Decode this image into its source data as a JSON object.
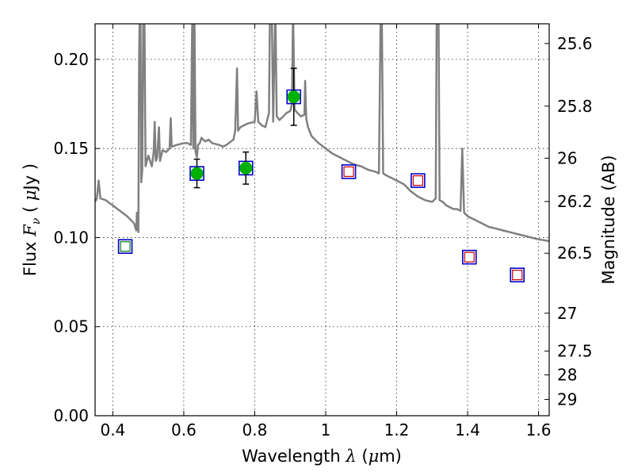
{
  "chart_data": {
    "type": "scatter",
    "xlabel": "Wavelength  λ (μm)",
    "ylabel": "Flux  F_ν  ( μJy )",
    "y2label": "Magnitude (AB)",
    "xlim": [
      0.35,
      1.63
    ],
    "ylim": [
      0.0,
      0.22
    ],
    "x_ticks": [
      {
        "value": 0.4,
        "label": "0.4"
      },
      {
        "value": 0.6,
        "label": "0.6"
      },
      {
        "value": 0.8,
        "label": "0.8"
      },
      {
        "value": 1.0,
        "label": "1"
      },
      {
        "value": 1.2,
        "label": "1.2"
      },
      {
        "value": 1.4,
        "label": "1.4"
      },
      {
        "value": 1.6,
        "label": "1.6"
      }
    ],
    "y_ticks": [
      {
        "value": 0.0,
        "label": "0.00"
      },
      {
        "value": 0.05,
        "label": "0.05"
      },
      {
        "value": 0.1,
        "label": "0.10"
      },
      {
        "value": 0.15,
        "label": "0.15"
      },
      {
        "value": 0.2,
        "label": "0.20"
      }
    ],
    "mag_ticks": [
      {
        "mag": 25.6,
        "label": "25.6"
      },
      {
        "mag": 25.8,
        "label": "25.8"
      },
      {
        "mag": 26.0,
        "label": "26"
      },
      {
        "mag": 26.2,
        "label": "26.2"
      },
      {
        "mag": 26.5,
        "label": "26.5"
      },
      {
        "mag": 27.0,
        "label": "27"
      },
      {
        "mag": 27.5,
        "label": "27.5"
      },
      {
        "mag": 28.0,
        "label": "28"
      },
      {
        "mag": 29.0,
        "label": "29"
      }
    ],
    "grid": true,
    "colors": {
      "model": "#808080",
      "observed": "#00b000",
      "model_photometry_box": "#0000cc",
      "predicted_fill": "#008000",
      "predicted_red": "#cc0000",
      "error_bar": "#000000"
    },
    "series": [
      {
        "kind": "line",
        "points": [
          [
            0.35,
            0.12
          ],
          [
            0.355,
            0.122
          ],
          [
            0.36,
            0.132
          ],
          [
            0.365,
            0.122
          ],
          [
            0.38,
            0.121
          ],
          [
            0.4,
            0.118
          ],
          [
            0.42,
            0.115
          ],
          [
            0.44,
            0.112
          ],
          [
            0.45,
            0.11
          ],
          [
            0.46,
            0.108
          ],
          [
            0.466,
            0.104
          ],
          [
            0.468,
            0.114
          ],
          [
            0.472,
            0.103
          ],
          [
            0.474,
            0.2
          ],
          [
            0.476,
            0.23
          ],
          [
            0.478,
            0.23
          ],
          [
            0.48,
            0.131
          ],
          [
            0.483,
            0.138
          ],
          [
            0.486,
            0.23
          ],
          [
            0.489,
            0.23
          ],
          [
            0.492,
            0.14
          ],
          [
            0.5,
            0.146
          ],
          [
            0.51,
            0.14
          ],
          [
            0.515,
            0.148
          ],
          [
            0.518,
            0.165
          ],
          [
            0.521,
            0.143
          ],
          [
            0.525,
            0.145
          ],
          [
            0.53,
            0.162
          ],
          [
            0.533,
            0.143
          ],
          [
            0.54,
            0.149
          ],
          [
            0.55,
            0.148
          ],
          [
            0.56,
            0.15
          ],
          [
            0.563,
            0.167
          ],
          [
            0.566,
            0.151
          ],
          [
            0.58,
            0.152
          ],
          [
            0.6,
            0.153
          ],
          [
            0.61,
            0.153
          ],
          [
            0.62,
            0.152
          ],
          [
            0.624,
            0.228
          ],
          [
            0.627,
            0.15
          ],
          [
            0.63,
            0.23
          ],
          [
            0.633,
            0.148
          ],
          [
            0.637,
            0.145
          ],
          [
            0.64,
            0.152
          ],
          [
            0.645,
            0.153
          ],
          [
            0.65,
            0.156
          ],
          [
            0.66,
            0.154
          ],
          [
            0.67,
            0.155
          ],
          [
            0.68,
            0.153
          ],
          [
            0.7,
            0.152
          ],
          [
            0.71,
            0.151
          ],
          [
            0.72,
            0.152
          ],
          [
            0.74,
            0.155
          ],
          [
            0.745,
            0.16
          ],
          [
            0.75,
            0.195
          ],
          [
            0.753,
            0.16
          ],
          [
            0.76,
            0.162
          ],
          [
            0.78,
            0.164
          ],
          [
            0.8,
            0.165
          ],
          [
            0.805,
            0.182
          ],
          [
            0.81,
            0.165
          ],
          [
            0.82,
            0.163
          ],
          [
            0.83,
            0.162
          ],
          [
            0.84,
            0.17
          ],
          [
            0.843,
            0.23
          ],
          [
            0.848,
            0.23
          ],
          [
            0.852,
            0.165
          ],
          [
            0.858,
            0.23
          ],
          [
            0.862,
            0.168
          ],
          [
            0.87,
            0.166
          ],
          [
            0.88,
            0.168
          ],
          [
            0.89,
            0.17
          ],
          [
            0.9,
            0.171
          ],
          [
            0.905,
            0.175
          ],
          [
            0.908,
            0.23
          ],
          [
            0.912,
            0.172
          ],
          [
            0.92,
            0.17
          ],
          [
            0.93,
            0.168
          ],
          [
            0.94,
            0.169
          ],
          [
            0.942,
            0.188
          ],
          [
            0.945,
            0.167
          ],
          [
            0.95,
            0.162
          ],
          [
            0.96,
            0.157
          ],
          [
            0.97,
            0.155
          ],
          [
            0.98,
            0.153
          ],
          [
            1.0,
            0.15
          ],
          [
            1.02,
            0.147
          ],
          [
            1.04,
            0.145
          ],
          [
            1.06,
            0.143
          ],
          [
            1.08,
            0.141
          ],
          [
            1.1,
            0.14
          ],
          [
            1.12,
            0.138
          ],
          [
            1.14,
            0.137
          ],
          [
            1.15,
            0.136
          ],
          [
            1.155,
            0.23
          ],
          [
            1.158,
            0.23
          ],
          [
            1.162,
            0.136
          ],
          [
            1.17,
            0.135
          ],
          [
            1.18,
            0.134
          ],
          [
            1.2,
            0.132
          ],
          [
            1.22,
            0.13
          ],
          [
            1.24,
            0.126
          ],
          [
            1.26,
            0.123
          ],
          [
            1.28,
            0.121
          ],
          [
            1.3,
            0.12
          ],
          [
            1.31,
            0.122
          ],
          [
            1.313,
            0.23
          ],
          [
            1.318,
            0.23
          ],
          [
            1.321,
            0.121
          ],
          [
            1.33,
            0.12
          ],
          [
            1.34,
            0.118
          ],
          [
            1.35,
            0.117
          ],
          [
            1.36,
            0.116
          ],
          [
            1.37,
            0.116
          ],
          [
            1.38,
            0.115
          ],
          [
            1.385,
            0.15
          ],
          [
            1.39,
            0.114
          ],
          [
            1.4,
            0.112
          ],
          [
            1.42,
            0.11
          ],
          [
            1.44,
            0.108
          ],
          [
            1.46,
            0.106
          ],
          [
            1.48,
            0.105
          ],
          [
            1.5,
            0.104
          ],
          [
            1.52,
            0.103
          ],
          [
            1.54,
            0.102
          ],
          [
            1.56,
            0.101
          ],
          [
            1.58,
            0.1
          ],
          [
            1.6,
            0.099
          ],
          [
            1.63,
            0.098
          ]
        ]
      },
      {
        "kind": "observed",
        "points": [
          {
            "x": 0.637,
            "y": 0.136,
            "err": 0.008
          },
          {
            "x": 0.775,
            "y": 0.139,
            "err": 0.009
          },
          {
            "x": 0.91,
            "y": 0.179,
            "err": 0.016
          }
        ]
      },
      {
        "kind": "model_photometry",
        "points": [
          {
            "x": 0.435,
            "y": 0.095,
            "inner": "green"
          },
          {
            "x": 0.637,
            "y": 0.136,
            "inner": "none"
          },
          {
            "x": 0.775,
            "y": 0.139,
            "inner": "none"
          },
          {
            "x": 0.91,
            "y": 0.179,
            "inner": "none"
          },
          {
            "x": 1.065,
            "y": 0.137,
            "inner": "red"
          },
          {
            "x": 1.26,
            "y": 0.132,
            "inner": "red"
          },
          {
            "x": 1.405,
            "y": 0.089,
            "inner": "red"
          },
          {
            "x": 1.54,
            "y": 0.079,
            "inner": "red"
          }
        ]
      }
    ]
  }
}
